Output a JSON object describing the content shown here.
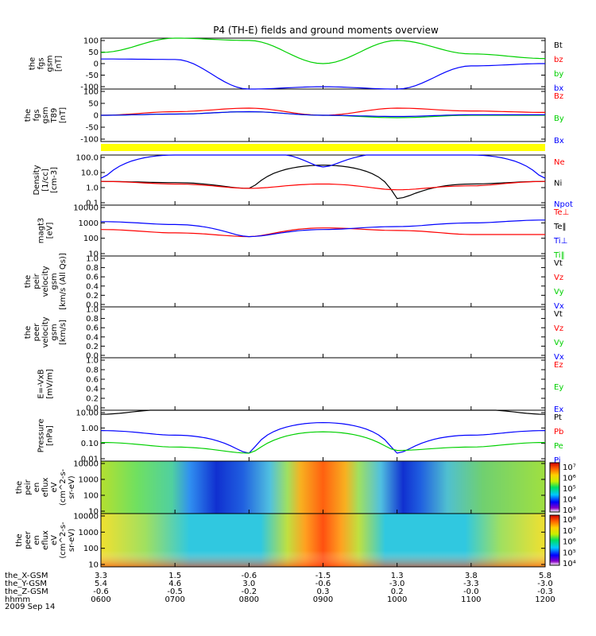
{
  "title": "P4 (TH-E) fields and ground moments overview",
  "colors": {
    "black": "#000000",
    "red": "#ff0000",
    "green": "#00d000",
    "blue": "#0000ff",
    "yellow": "#ffff00"
  },
  "panels": [
    {
      "id": "fgs",
      "ylabel": [
        "the",
        "fgs",
        "gsm",
        "[nT]"
      ],
      "yticks": [
        "100",
        "50",
        "0",
        "-50",
        "-100"
      ],
      "legend": [
        {
          "t": "Bt",
          "c": "black"
        },
        {
          "t": "bz",
          "c": "red"
        },
        {
          "t": "by",
          "c": "green"
        },
        {
          "t": "bx",
          "c": "blue"
        }
      ]
    },
    {
      "id": "fgh",
      "ylabel": [
        "the",
        "fgs",
        "gsm",
        "T89",
        "[nT]"
      ],
      "yticks": [
        "100",
        "50",
        "0",
        "-50",
        "-100"
      ],
      "legend": [
        {
          "t": "Bz",
          "c": "red"
        },
        {
          "t": "By",
          "c": "green"
        },
        {
          "t": "Bx",
          "c": "blue"
        }
      ]
    },
    {
      "id": "density",
      "ylabel": [
        "Density",
        "[1/cc]",
        "[cm-3]"
      ],
      "yticks": [
        "100.0",
        "10.0",
        "1.0",
        "0.1"
      ],
      "legend": [
        {
          "t": "Ne",
          "c": "red"
        },
        {
          "t": "Ni",
          "c": "black"
        },
        {
          "t": "Npot",
          "c": "blue"
        }
      ]
    },
    {
      "id": "temp",
      "ylabel": [
        "magt3",
        "[eV]"
      ],
      "yticks": [
        "10000",
        "1000",
        "100",
        "10"
      ],
      "legend": [
        {
          "t": "Te⊥",
          "c": "red"
        },
        {
          "t": "Te‖",
          "c": "black"
        },
        {
          "t": "Ti⊥",
          "c": "blue"
        },
        {
          "t": "Ti‖",
          "c": "green"
        }
      ]
    },
    {
      "id": "vpeir",
      "ylabel": [
        "the",
        "peir",
        "velocity",
        "gsm",
        "[km/s (All Qs)]"
      ],
      "yticks": [
        "1.0",
        "0.8",
        "0.6",
        "0.4",
        "0.2",
        "0.0"
      ],
      "legend": [
        {
          "t": "Vt",
          "c": "black"
        },
        {
          "t": "Vz",
          "c": "red"
        },
        {
          "t": "Vy",
          "c": "green"
        },
        {
          "t": "Vx",
          "c": "blue"
        }
      ]
    },
    {
      "id": "vpeer",
      "ylabel": [
        "the",
        "peer",
        "velocity",
        "gsm",
        "[km/s]"
      ],
      "yticks": [
        "1.0",
        "0.8",
        "0.6",
        "0.4",
        "0.2",
        "0.0"
      ],
      "legend": [
        {
          "t": "Vt",
          "c": "black"
        },
        {
          "t": "Vz",
          "c": "red"
        },
        {
          "t": "Vy",
          "c": "green"
        },
        {
          "t": "Vx",
          "c": "blue"
        }
      ]
    },
    {
      "id": "efield",
      "ylabel": [
        "E=-VxB",
        "[mV/m]"
      ],
      "yticks": [
        "1.0",
        "0.8",
        "0.6",
        "0.4",
        "0.2",
        "0.0"
      ],
      "legend": [
        {
          "t": "Ez",
          "c": "red"
        },
        {
          "t": "Ey",
          "c": "green"
        },
        {
          "t": "Ex",
          "c": "blue"
        }
      ]
    },
    {
      "id": "pressure",
      "ylabel": [
        "Pressure",
        "[nPa]"
      ],
      "yticks": [
        "10.00",
        "1.00",
        "0.10",
        "0.01"
      ],
      "legend": [
        {
          "t": "Pt",
          "c": "black"
        },
        {
          "t": "Pb",
          "c": "red"
        },
        {
          "t": "Pe",
          "c": "green"
        },
        {
          "t": "Pi",
          "c": "blue"
        }
      ]
    },
    {
      "id": "peir_spec",
      "ylabel": [
        "the",
        "peir",
        "en",
        "eflux",
        "eV",
        "(cm^2-s-",
        "sr-eV)"
      ],
      "yticks": [
        "10000",
        "1000",
        "100",
        "10"
      ],
      "cbar": [
        "10⁷",
        "10⁶",
        "10⁵",
        "10⁴",
        "10³"
      ]
    },
    {
      "id": "peer_spec",
      "ylabel": [
        "the",
        "peer",
        "en",
        "eflux",
        "eV",
        "(cm^2-s-",
        "sr-eV)"
      ],
      "yticks": [
        "10000",
        "1000",
        "100",
        "10"
      ],
      "cbar": [
        "10⁸",
        "10⁷",
        "10⁶",
        "10⁵",
        "10⁴"
      ]
    }
  ],
  "xaxis": {
    "rows": [
      {
        "label": "the_X-GSM",
        "values": [
          "3.3",
          "1.5",
          "-0.6",
          "-1.5",
          "1.3",
          "3.8",
          "5.8"
        ]
      },
      {
        "label": "the_Y-GSM",
        "values": [
          "5.4",
          "4.6",
          "3.0",
          "-0.6",
          "-3.0",
          "-3.3",
          "-3.0"
        ]
      },
      {
        "label": "the_Z-GSM",
        "values": [
          "-0.6",
          "-0.5",
          "-0.2",
          "0.3",
          "0.2",
          "-0.0",
          "-0.3"
        ]
      },
      {
        "label": "hhmm",
        "values": [
          "0600",
          "0700",
          "0800",
          "0900",
          "1000",
          "1100",
          "1200"
        ]
      }
    ],
    "date": "2009 Sep 14"
  },
  "chart_data": {
    "type": "line",
    "title": "P4 (TH-E) fields and ground moments overview",
    "x_unit": "UT hhmm",
    "x": [
      "0600",
      "0700",
      "0800",
      "0900",
      "1000",
      "1100",
      "1200"
    ],
    "series": [
      {
        "name": "bx",
        "panel": "fgs",
        "values": [
          20,
          18,
          -110,
          -100,
          -110,
          -10,
          0
        ]
      },
      {
        "name": "by",
        "panel": "fgs",
        "values": [
          48,
          110,
          100,
          0,
          100,
          42,
          22
        ]
      },
      {
        "name": "Bz",
        "panel": "fgh",
        "values": [
          0,
          15,
          30,
          0,
          30,
          18,
          12
        ]
      },
      {
        "name": "By",
        "panel": "fgh",
        "values": [
          0,
          5,
          15,
          0,
          -10,
          0,
          0
        ]
      },
      {
        "name": "Bx",
        "panel": "fgh",
        "values": [
          0,
          5,
          15,
          0,
          -5,
          2,
          2
        ]
      },
      {
        "name": "Ni",
        "panel": "density",
        "values": [
          3,
          2.5,
          1,
          40,
          0.2,
          2,
          3
        ]
      },
      {
        "name": "Ne",
        "panel": "density",
        "values": [
          3,
          2,
          1,
          2,
          0.8,
          1.5,
          3
        ]
      },
      {
        "name": "Npot",
        "panel": "density",
        "values": [
          5,
          200,
          400,
          30,
          300,
          200,
          5
        ]
      },
      {
        "name": "Te⊥",
        "panel": "temp",
        "values": [
          400,
          250,
          150,
          500,
          350,
          200,
          200
        ]
      },
      {
        "name": "Ti⊥",
        "panel": "temp",
        "values": [
          1200,
          800,
          150,
          400,
          600,
          1000,
          1500
        ]
      },
      {
        "name": "Pi",
        "panel": "pressure",
        "values": [
          0.6,
          0.3,
          0.02,
          2,
          0.02,
          0.3,
          0.6
        ]
      },
      {
        "name": "Pe",
        "panel": "pressure",
        "values": [
          0.1,
          0.05,
          0.02,
          0.5,
          0.03,
          0.05,
          0.1
        ]
      },
      {
        "name": "Pt",
        "panel": "pressure",
        "values": [
          7,
          15,
          25,
          40,
          25,
          15,
          7
        ]
      }
    ]
  }
}
